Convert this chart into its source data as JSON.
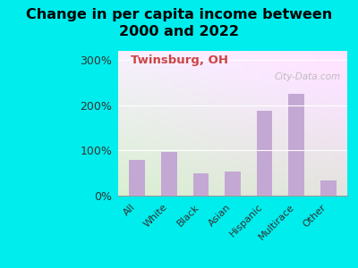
{
  "title": "Change in per capita income between\n2000 and 2022",
  "subtitle": "Twinsburg, OH",
  "categories": [
    "All",
    "White",
    "Black",
    "Asian",
    "Hispanic",
    "Multirace",
    "Other"
  ],
  "values": [
    80,
    97,
    50,
    53,
    188,
    225,
    33
  ],
  "bar_color": "#c4a8d4",
  "title_fontsize": 11.5,
  "subtitle_fontsize": 9.5,
  "subtitle_color": "#cc4444",
  "background_color": "#00eded",
  "ytick_fontsize": 9,
  "xtick_fontsize": 8,
  "ylabel_ticks": [
    0,
    100,
    200,
    300
  ],
  "ylim": [
    0,
    320
  ],
  "watermark": "City-Data.com",
  "watermark_color": "#b0b0b0",
  "fig_width": 4.0,
  "fig_height": 3.0,
  "dpi": 100
}
